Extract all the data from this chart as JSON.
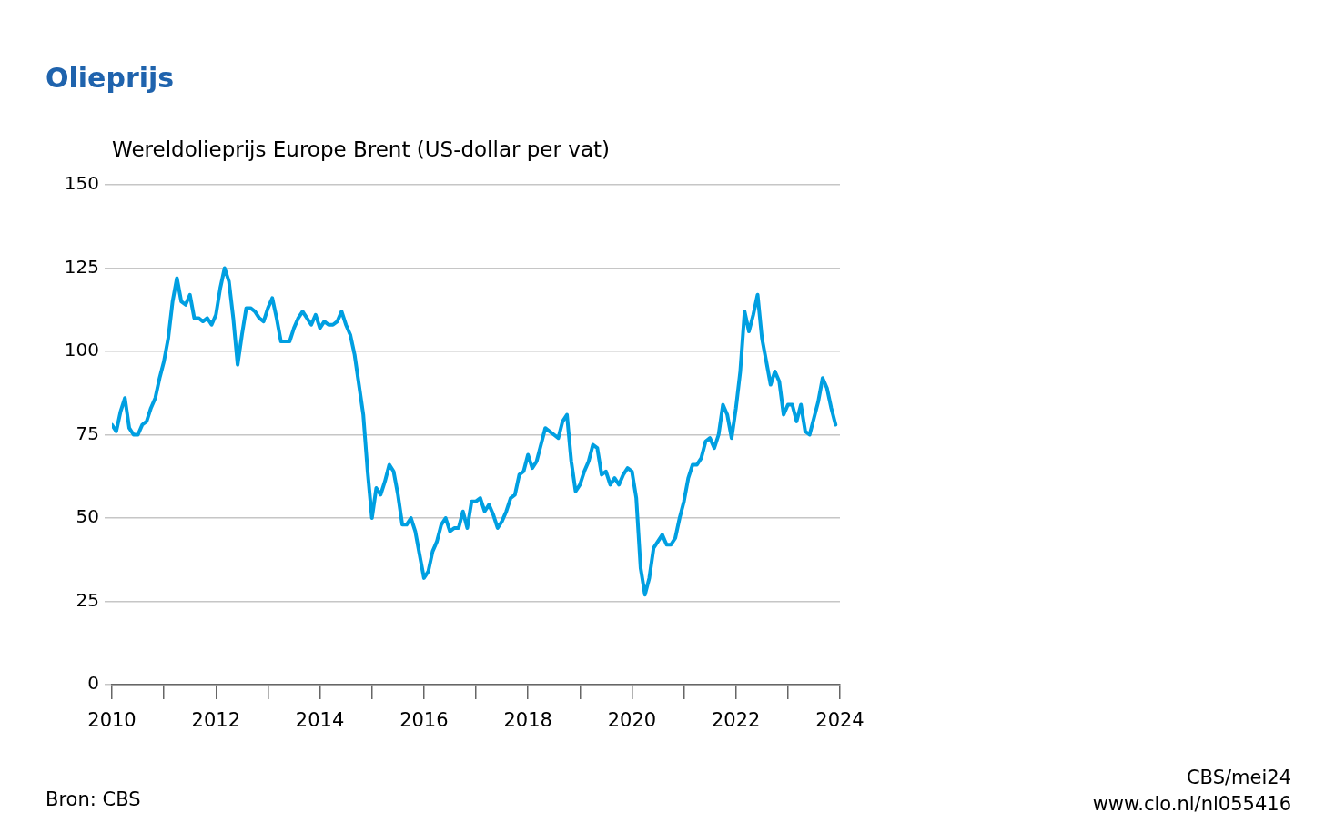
{
  "chart_data": {
    "type": "line",
    "title": "Olieprijs",
    "ylabel": "Wereldolieprijs Europe Brent (US-dollar per vat)",
    "annotations": [
      "Bron: CBS",
      "CBS/mei24",
      "www.clo.nl/nl055416"
    ],
    "x": [
      "2010-01",
      "2010-02",
      "2010-03",
      "2010-04",
      "2010-05",
      "2010-06",
      "2010-07",
      "2010-08",
      "2010-09",
      "2010-10",
      "2010-11",
      "2010-12",
      "2011-01",
      "2011-02",
      "2011-03",
      "2011-04",
      "2011-05",
      "2011-06",
      "2011-07",
      "2011-08",
      "2011-09",
      "2011-10",
      "2011-11",
      "2011-12",
      "2012-01",
      "2012-02",
      "2012-03",
      "2012-04",
      "2012-05",
      "2012-06",
      "2012-07",
      "2012-08",
      "2012-09",
      "2012-10",
      "2012-11",
      "2012-12",
      "2013-01",
      "2013-02",
      "2013-03",
      "2013-04",
      "2013-05",
      "2013-06",
      "2013-07",
      "2013-08",
      "2013-09",
      "2013-10",
      "2013-11",
      "2013-12",
      "2014-01",
      "2014-02",
      "2014-03",
      "2014-04",
      "2014-05",
      "2014-06",
      "2014-07",
      "2014-08",
      "2014-09",
      "2014-10",
      "2014-11",
      "2014-12",
      "2015-01",
      "2015-02",
      "2015-03",
      "2015-04",
      "2015-05",
      "2015-06",
      "2015-07",
      "2015-08",
      "2015-09",
      "2015-10",
      "2015-11",
      "2015-12",
      "2016-01",
      "2016-02",
      "2016-03",
      "2016-04",
      "2016-05",
      "2016-06",
      "2016-07",
      "2016-08",
      "2016-09",
      "2016-10",
      "2016-11",
      "2016-12",
      "2017-01",
      "2017-02",
      "2017-03",
      "2017-04",
      "2017-05",
      "2017-06",
      "2017-07",
      "2017-08",
      "2017-09",
      "2017-10",
      "2017-11",
      "2017-12",
      "2018-01",
      "2018-02",
      "2018-03",
      "2018-04",
      "2018-05",
      "2018-06",
      "2018-07",
      "2018-08",
      "2018-09",
      "2018-10",
      "2018-11",
      "2018-12",
      "2019-01",
      "2019-02",
      "2019-03",
      "2019-04",
      "2019-05",
      "2019-06",
      "2019-07",
      "2019-08",
      "2019-09",
      "2019-10",
      "2019-11",
      "2019-12",
      "2020-01",
      "2020-02",
      "2020-03",
      "2020-04",
      "2020-05",
      "2020-06",
      "2020-07",
      "2020-08",
      "2020-09",
      "2020-10",
      "2020-11",
      "2020-12",
      "2021-01",
      "2021-02",
      "2021-03",
      "2021-04",
      "2021-05",
      "2021-06",
      "2021-07",
      "2021-08",
      "2021-09",
      "2021-10",
      "2021-11",
      "2021-12",
      "2022-01",
      "2022-02",
      "2022-03",
      "2022-04",
      "2022-05",
      "2022-06",
      "2022-07",
      "2022-08",
      "2022-09",
      "2022-10",
      "2022-11",
      "2022-12",
      "2023-01",
      "2023-02",
      "2023-03",
      "2023-04",
      "2023-05",
      "2023-06",
      "2023-07",
      "2023-08",
      "2023-09",
      "2023-10",
      "2023-11",
      "2023-12"
    ],
    "series": [
      {
        "color": "#009fe1",
        "values": [
          78,
          76,
          82,
          86,
          77,
          75,
          75,
          78,
          79,
          83,
          86,
          92,
          97,
          104,
          115,
          122,
          115,
          114,
          117,
          110,
          110,
          109,
          110,
          108,
          111,
          119,
          125,
          121,
          110,
          96,
          105,
          113,
          113,
          112,
          110,
          109,
          113,
          116,
          110,
          103,
          103,
          103,
          107,
          110,
          112,
          110,
          108,
          111,
          107,
          109,
          108,
          108,
          109,
          112,
          108,
          105,
          99,
          90,
          81,
          64,
          50,
          59,
          57,
          61,
          66,
          64,
          57,
          48,
          48,
          50,
          46,
          39,
          32,
          34,
          40,
          43,
          48,
          50,
          46,
          47,
          47,
          52,
          47,
          55,
          55,
          56,
          52,
          54,
          51,
          47,
          49,
          52,
          56,
          57,
          63,
          64,
          69,
          65,
          67,
          72,
          77,
          76,
          75,
          74,
          79,
          81,
          67,
          58,
          60,
          64,
          67,
          72,
          71,
          63,
          64,
          60,
          62,
          60,
          63,
          65,
          64,
          56,
          35,
          27,
          32,
          41,
          43,
          45,
          42,
          42,
          44,
          50,
          55,
          62,
          66,
          66,
          68,
          73,
          74,
          71,
          75,
          84,
          81,
          74,
          83,
          94,
          112,
          106,
          111,
          117,
          104,
          97,
          90,
          94,
          91,
          81,
          84,
          84,
          79,
          84,
          76,
          75,
          80,
          85,
          92,
          89,
          83,
          78
        ]
      }
    ],
    "xlim": [
      "2010",
      "2024"
    ],
    "xticks": [
      "2010",
      {
        "value": "2011",
        "label": null
      },
      "2012",
      {
        "value": "2013",
        "label": null
      },
      "2014",
      {
        "value": "2015",
        "label": null
      },
      "2016",
      {
        "value": "2017",
        "label": null
      },
      "2018",
      {
        "value": "2019",
        "label": null
      },
      "2020",
      {
        "value": "2021",
        "label": null
      },
      "2022",
      {
        "value": "2023",
        "label": null
      },
      "2024"
    ],
    "ylim": [
      0,
      150
    ],
    "yticks": [
      0,
      25,
      50,
      75,
      100,
      125,
      150
    ],
    "grid": "y",
    "marker": "none",
    "line_style": "solid"
  }
}
